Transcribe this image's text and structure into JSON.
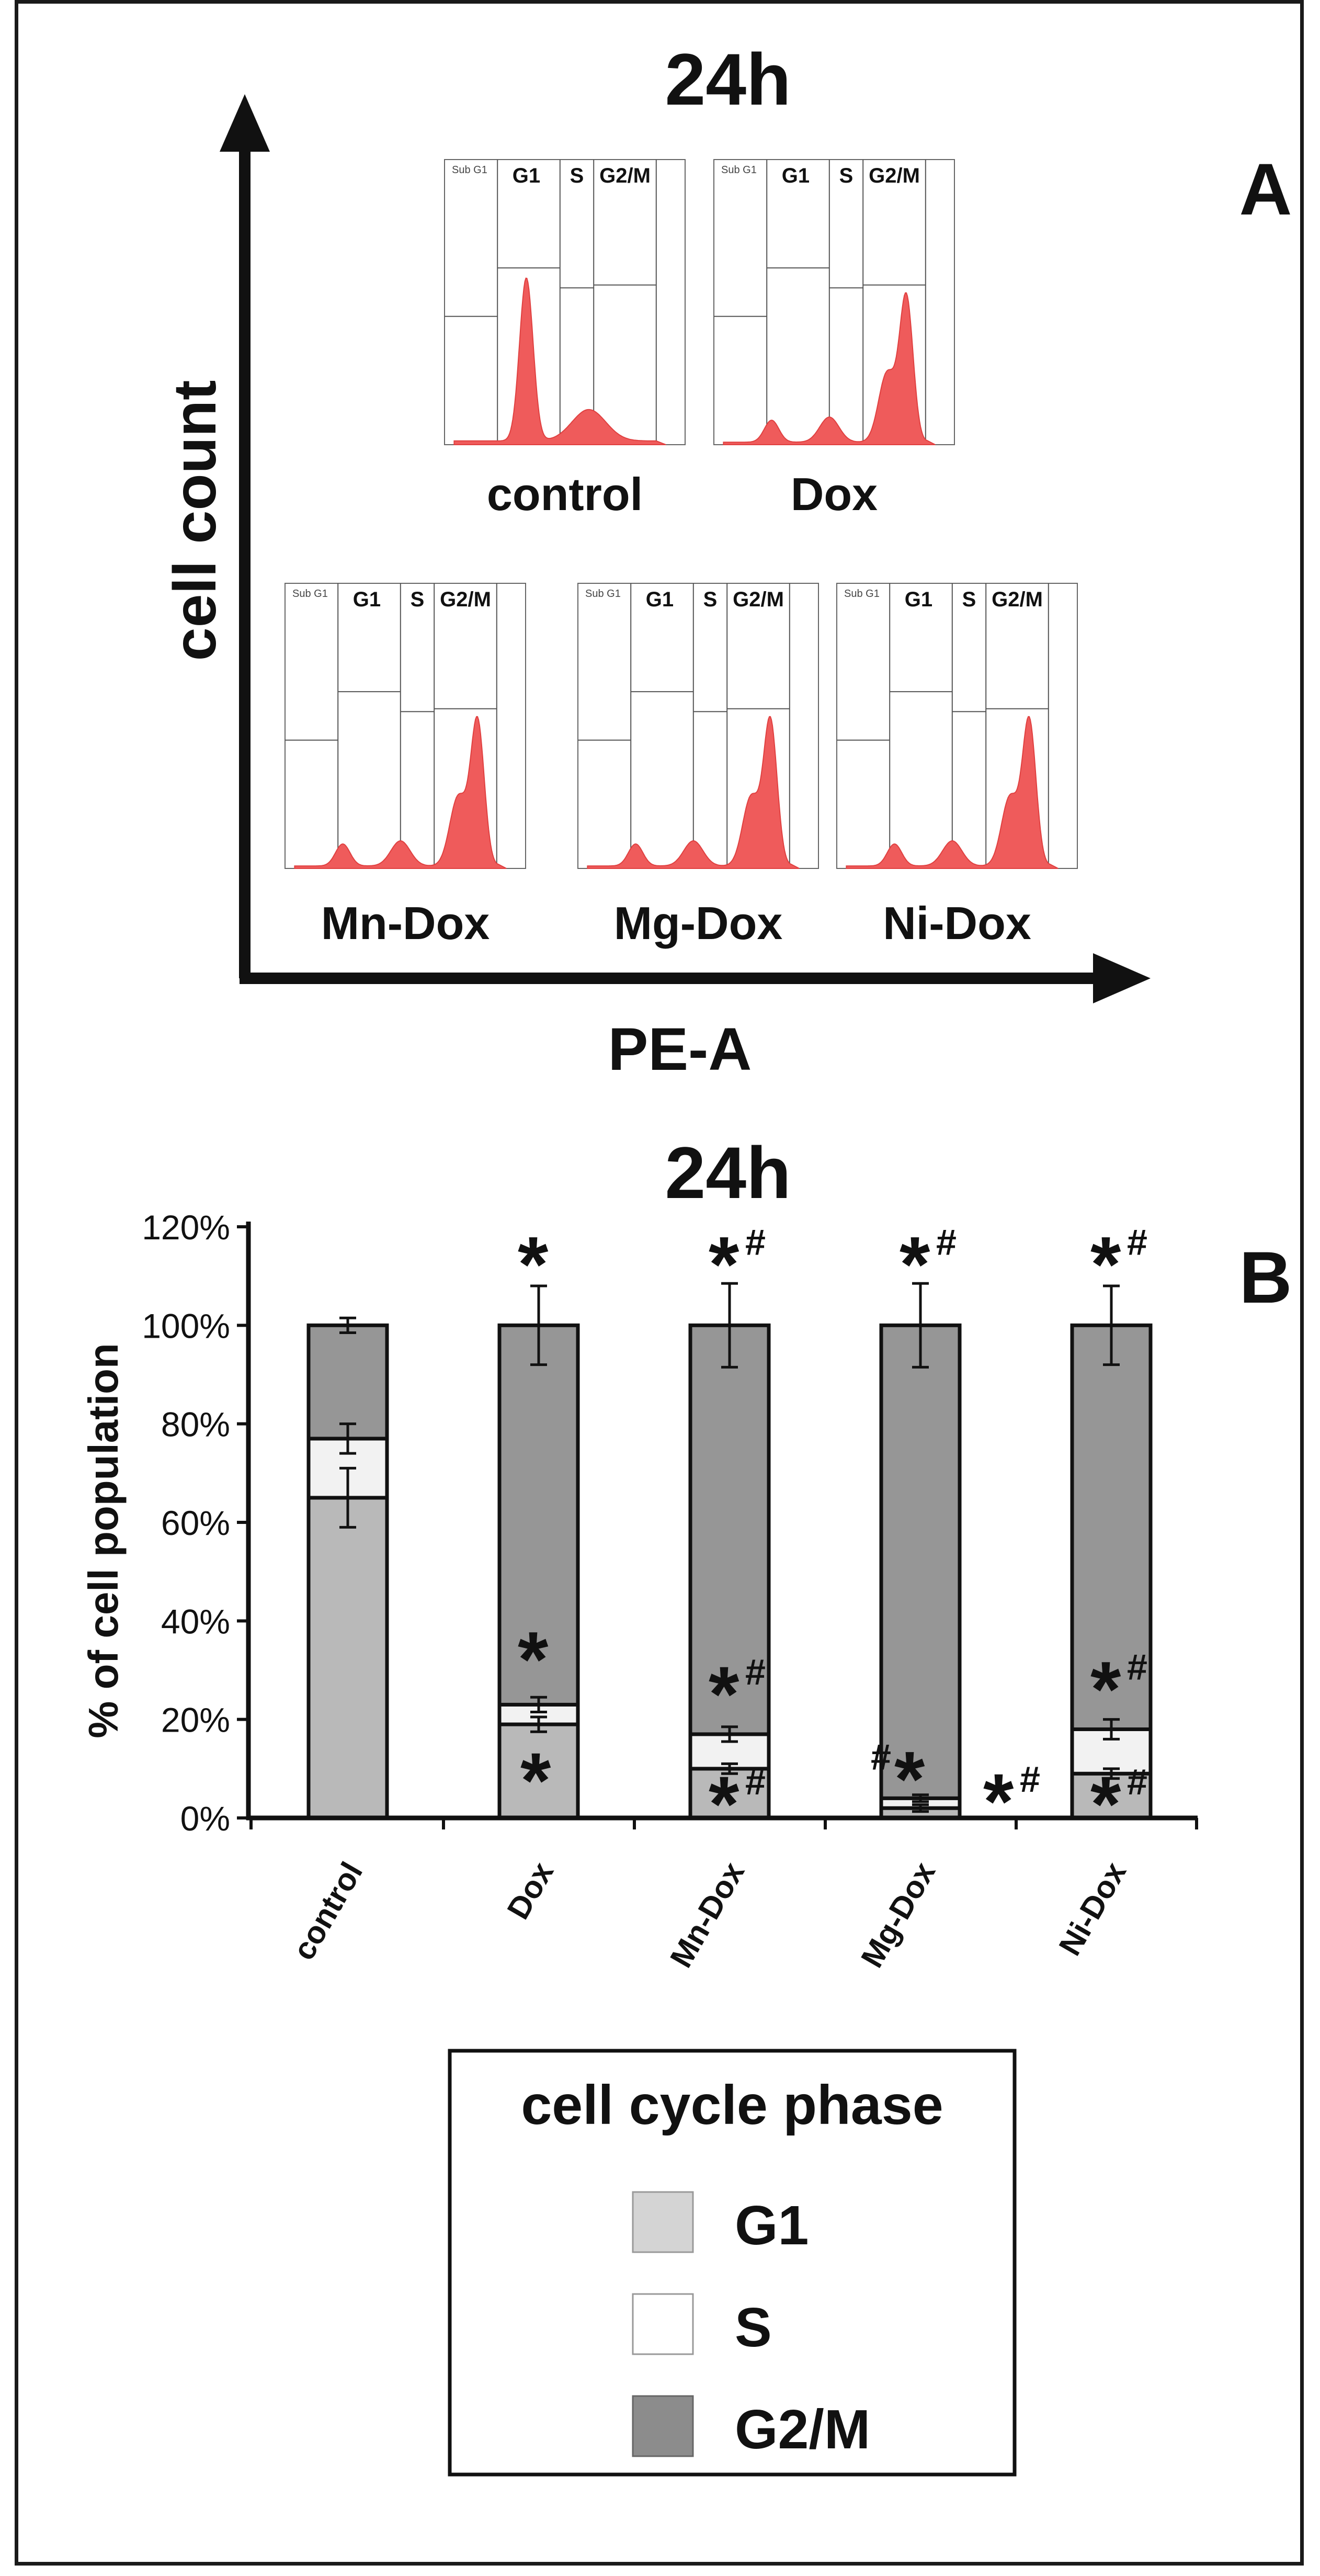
{
  "panelA": {
    "title": "24h",
    "letter": "A",
    "yAxisLabel": "cell count",
    "xAxisLabel": "PE-A",
    "gateLabels": {
      "subg1": "Sub G1",
      "g1": "G1",
      "s": "S",
      "g2m": "G2/M"
    },
    "histograms": [
      {
        "label": "control",
        "profile": "control"
      },
      {
        "label": "Dox",
        "profile": "arrest"
      },
      {
        "label": "Mn-Dox",
        "profile": "arrest"
      },
      {
        "label": "Mg-Dox",
        "profile": "arrest"
      },
      {
        "label": "Ni-Dox",
        "profile": "arrest"
      }
    ],
    "histogramColor": "#ef5b5b"
  },
  "panelB": {
    "title": "24h",
    "letter": "B",
    "legendTitle": "cell cycle phase",
    "colors": {
      "G1": "#b9b9b9",
      "S": "#f2f2f2",
      "G2M": "#969696"
    },
    "legendColors": {
      "G1": "#d4d4d4",
      "S": "#ffffff",
      "G2M": "#8c8c8c"
    }
  },
  "chart_data": {
    "type": "bar",
    "stacked": true,
    "title": "24h",
    "xlabel": "",
    "ylabel": "% of cell population",
    "ylim": [
      0,
      120
    ],
    "yticks": [
      "0%",
      "20%",
      "40%",
      "60%",
      "80%",
      "100%",
      "120%"
    ],
    "categories": [
      "control",
      "Dox",
      "Mn-Dox",
      "Mg-Dox",
      "Ni-Dox"
    ],
    "series": [
      {
        "name": "G1",
        "values": [
          65,
          19,
          10,
          2,
          9
        ],
        "errors": [
          6,
          1.5,
          1,
          0.7,
          1
        ]
      },
      {
        "name": "S",
        "values": [
          12,
          4,
          7,
          2,
          9
        ],
        "errors": [
          3,
          1.5,
          1.5,
          0.7,
          2
        ]
      },
      {
        "name": "G2/M",
        "values": [
          23,
          77,
          83,
          96,
          82
        ],
        "errors": [
          1.5,
          8,
          8.5,
          8.5,
          8
        ]
      }
    ],
    "annotations": [
      {
        "category": "Dox",
        "phase": "G2/M",
        "text": "*"
      },
      {
        "category": "Dox",
        "phase": "S",
        "text": "*"
      },
      {
        "category": "Dox",
        "phase": "G1",
        "text": "*"
      },
      {
        "category": "Mn-Dox",
        "phase": "G2/M",
        "text": "*#"
      },
      {
        "category": "Mn-Dox",
        "phase": "S",
        "text": "*#"
      },
      {
        "category": "Mn-Dox",
        "phase": "G1",
        "text": "*#"
      },
      {
        "category": "Mg-Dox",
        "phase": "G2/M",
        "text": "*#"
      },
      {
        "category": "Mg-Dox",
        "phase": "S",
        "text": "#*"
      },
      {
        "category": "Mg-Dox",
        "phase": "G1",
        "text": "*#"
      },
      {
        "category": "Ni-Dox",
        "phase": "G2/M",
        "text": "*#"
      },
      {
        "category": "Ni-Dox",
        "phase": "S",
        "text": "*#"
      },
      {
        "category": "Ni-Dox",
        "phase": "G1",
        "text": "*#"
      }
    ],
    "legend": [
      "G1",
      "S",
      "G2/M"
    ]
  }
}
